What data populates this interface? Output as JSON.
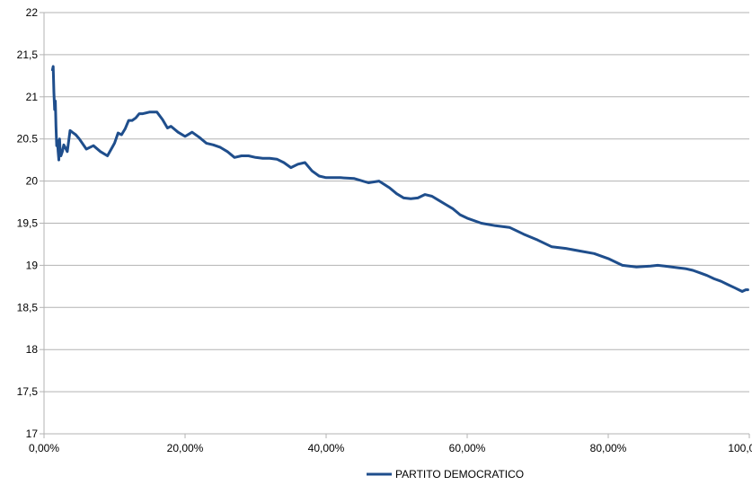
{
  "chart_data": {
    "type": "line",
    "title": "",
    "xlabel": "",
    "ylabel": "",
    "xlim": [
      0,
      1
    ],
    "ylim": [
      17,
      22
    ],
    "x_ticks": [
      "0,00%",
      "20,00%",
      "40,00%",
      "60,00%",
      "80,00%",
      "100,00%"
    ],
    "y_ticks": [
      "17",
      "17,5",
      "18",
      "18,5",
      "19",
      "19,5",
      "20",
      "20.5",
      "21",
      "21,5",
      "22"
    ],
    "grid": "horizontal",
    "legend_position": "bottom",
    "colors": {
      "series": "#1f4e8c",
      "grid": "#b3b3b3",
      "axis": "#b3b3b3"
    },
    "series": [
      {
        "name": "PARTITO DEMOCRATICO",
        "x": [
          0.012,
          0.013,
          0.014,
          0.015,
          0.016,
          0.017,
          0.018,
          0.019,
          0.02,
          0.021,
          0.022,
          0.023,
          0.024,
          0.026,
          0.028,
          0.03,
          0.033,
          0.037,
          0.04,
          0.045,
          0.05,
          0.06,
          0.07,
          0.08,
          0.09,
          0.1,
          0.105,
          0.11,
          0.115,
          0.12,
          0.125,
          0.13,
          0.135,
          0.14,
          0.15,
          0.16,
          0.168,
          0.17,
          0.175,
          0.18,
          0.19,
          0.2,
          0.21,
          0.22,
          0.23,
          0.24,
          0.25,
          0.26,
          0.27,
          0.28,
          0.29,
          0.3,
          0.31,
          0.32,
          0.33,
          0.34,
          0.35,
          0.36,
          0.37,
          0.38,
          0.39,
          0.4,
          0.42,
          0.44,
          0.46,
          0.475,
          0.49,
          0.5,
          0.51,
          0.52,
          0.53,
          0.54,
          0.55,
          0.56,
          0.57,
          0.58,
          0.59,
          0.6,
          0.62,
          0.64,
          0.66,
          0.68,
          0.7,
          0.72,
          0.74,
          0.76,
          0.78,
          0.8,
          0.82,
          0.84,
          0.86,
          0.87,
          0.88,
          0.89,
          0.9,
          0.91,
          0.92,
          0.93,
          0.94,
          0.95,
          0.96,
          0.97,
          0.98,
          0.985,
          0.99,
          0.995,
          0.998
        ],
        "values": [
          21.32,
          21.36,
          21.05,
          20.85,
          20.95,
          20.65,
          20.42,
          20.48,
          20.35,
          20.25,
          20.5,
          20.33,
          20.3,
          20.35,
          20.43,
          20.4,
          20.35,
          20.6,
          20.58,
          20.55,
          20.5,
          20.38,
          20.42,
          20.35,
          20.3,
          20.45,
          20.57,
          20.55,
          20.62,
          20.72,
          20.72,
          20.75,
          20.8,
          20.8,
          20.82,
          20.82,
          20.73,
          20.7,
          20.63,
          20.65,
          20.58,
          20.53,
          20.58,
          20.52,
          20.45,
          20.43,
          20.4,
          20.35,
          20.28,
          20.3,
          20.3,
          20.28,
          20.27,
          20.27,
          20.26,
          20.22,
          20.16,
          20.2,
          20.22,
          20.12,
          20.06,
          20.04,
          20.04,
          20.03,
          19.98,
          20.0,
          19.92,
          19.85,
          19.8,
          19.79,
          19.8,
          19.84,
          19.82,
          19.77,
          19.72,
          19.67,
          19.6,
          19.56,
          19.5,
          19.47,
          19.45,
          19.37,
          19.3,
          19.22,
          19.2,
          19.17,
          19.14,
          19.08,
          19.0,
          18.98,
          18.99,
          19.0,
          18.99,
          18.98,
          18.97,
          18.96,
          18.94,
          18.91,
          18.88,
          18.84,
          18.81,
          18.77,
          18.73,
          18.71,
          18.69,
          18.71,
          18.71
        ]
      }
    ]
  }
}
